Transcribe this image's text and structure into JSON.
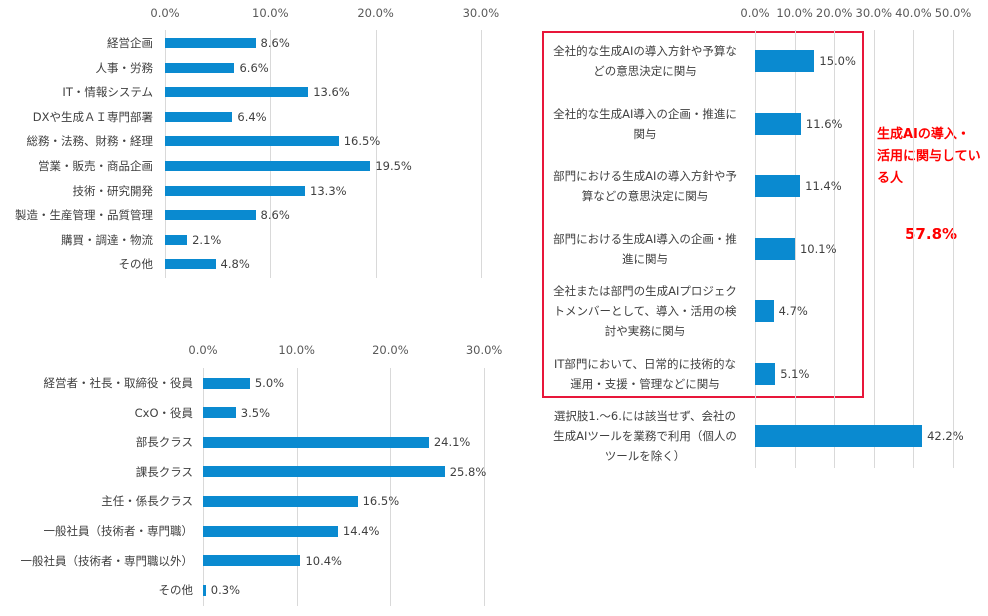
{
  "chart_data": [
    {
      "type": "bar",
      "orientation": "horizontal",
      "title": "",
      "xlim": [
        0,
        30
      ],
      "ticks": [
        "0.0%",
        "10.0%",
        "20.0%",
        "30.0%"
      ],
      "categories": [
        "経営企画",
        "人事・労務",
        "IT・情報システム",
        "DXや生成ＡＩ専門部署",
        "総務・法務、財務・経理",
        "営業・販売・商品企画",
        "技術・研究開発",
        "製造・生産管理・品質管理",
        "購買・調達・物流",
        "その他"
      ],
      "values": [
        8.6,
        6.6,
        13.6,
        6.4,
        16.5,
        19.5,
        13.3,
        8.6,
        2.1,
        4.8
      ],
      "labels": [
        "8.6%",
        "6.6%",
        "13.6%",
        "6.4%",
        "16.5%",
        "19.5%",
        "13.3%",
        "8.6%",
        "2.1%",
        "4.8%"
      ],
      "grid": true,
      "color": "#0a8ad0"
    },
    {
      "type": "bar",
      "orientation": "horizontal",
      "title": "",
      "xlim": [
        0,
        30
      ],
      "ticks": [
        "0.0%",
        "10.0%",
        "20.0%",
        "30.0%"
      ],
      "categories": [
        "経営者・社長・取締役・役員",
        "CxO・役員",
        "部長クラス",
        "課長クラス",
        "主任・係長クラス",
        "一般社員（技術者・専門職）",
        "一般社員（技術者・専門職以外）",
        "その他"
      ],
      "values": [
        5.0,
        3.5,
        24.1,
        25.8,
        16.5,
        14.4,
        10.4,
        0.3
      ],
      "labels": [
        "5.0%",
        "3.5%",
        "24.1%",
        "25.8%",
        "16.5%",
        "14.4%",
        "10.4%",
        "0.3%"
      ],
      "grid": true,
      "color": "#0a8ad0"
    },
    {
      "type": "bar",
      "orientation": "horizontal",
      "title": "",
      "xlim": [
        0,
        50
      ],
      "ticks": [
        "0.0%",
        "10.0%",
        "20.0%",
        "30.0%",
        "40.0%",
        "50.0%"
      ],
      "categories": [
        "全社的な生成AIの導入方針や予算などの意思決定に関与",
        "全社的な生成AI導入の企画・推進に関与",
        "部門における生成AIの導入方針や予算などの意思決定に関与",
        "部門における生成AI導入の企画・推進に関与",
        "全社または部門の生成AIプロジェクトメンバーとして、導入・活用の検討や実務に関与",
        "IT部門において、日常的に技術的な運用・支援・管理などに関与",
        "選択肢1.～6.には該当せず、会社の生成AIツールを業務で利用（個人のツールを除く）"
      ],
      "values": [
        15.0,
        11.6,
        11.4,
        10.1,
        4.7,
        5.1,
        42.2
      ],
      "labels": [
        "15.0%",
        "11.6%",
        "11.4%",
        "10.1%",
        "4.7%",
        "5.1%",
        "42.2%"
      ],
      "grid": true,
      "color": "#0a8ad0",
      "annotation": {
        "text": "生成AIの導入・活用に関与している人",
        "value": "57.8%",
        "color": "#ff0000"
      }
    }
  ]
}
